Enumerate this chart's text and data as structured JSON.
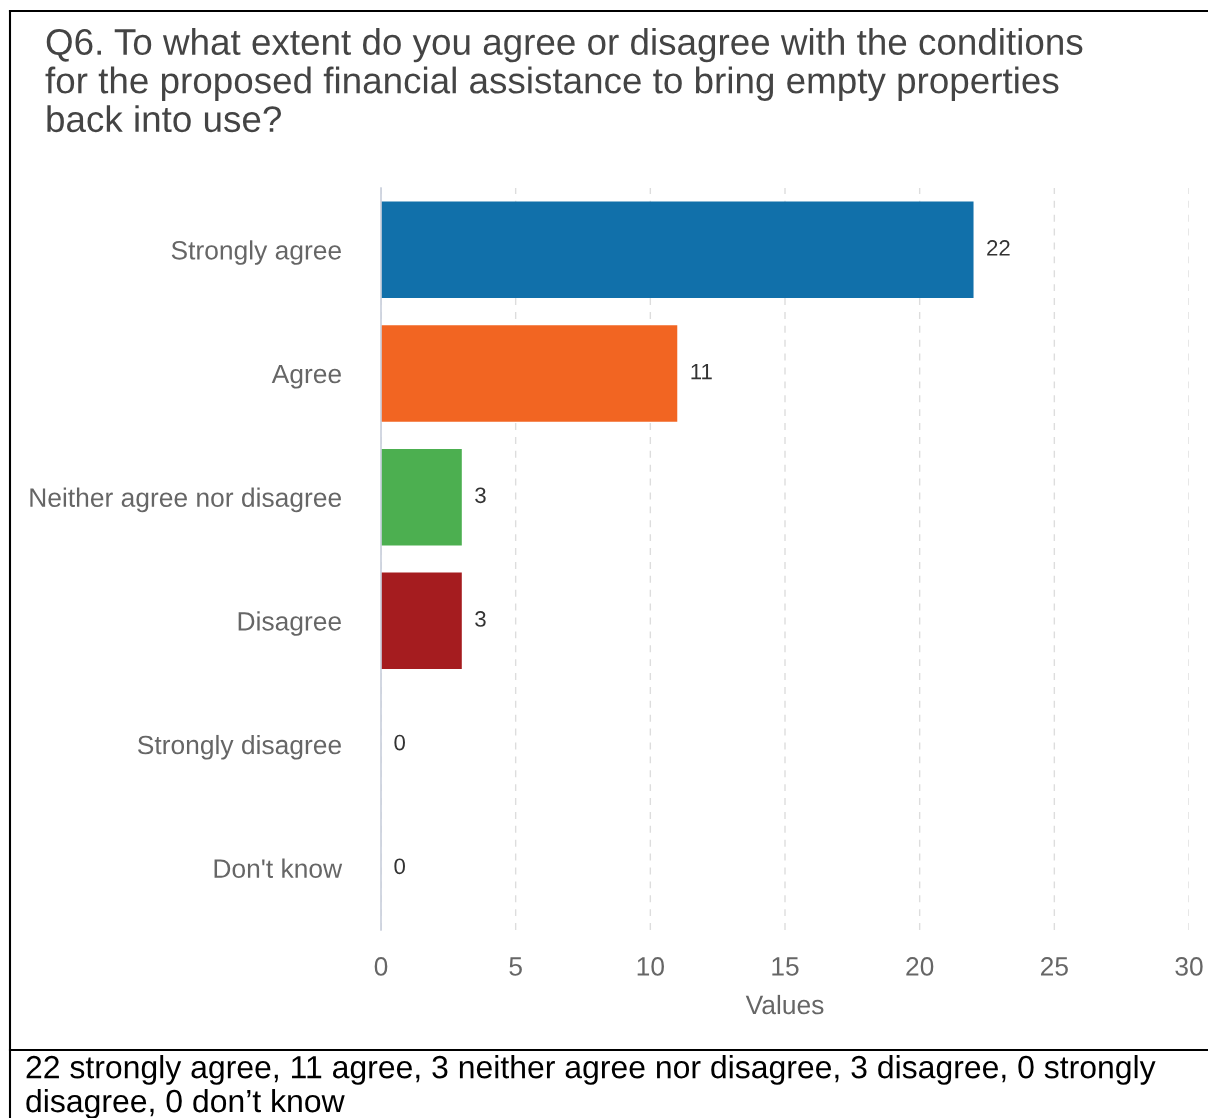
{
  "chart_data": {
    "type": "bar",
    "orientation": "horizontal",
    "title": "Q6. To what extent do you agree or disagree with the conditions for the proposed financial assistance to bring empty properties back into use?",
    "xlabel": "Values",
    "categories": [
      "Strongly agree",
      "Agree",
      "Neither agree nor disagree",
      "Disagree",
      "Strongly disagree",
      "Don't know"
    ],
    "values": [
      22,
      11,
      3,
      3,
      0,
      0
    ],
    "colors": [
      "#1170aa",
      "#f26522",
      "#4caf50",
      "#a51c1f",
      "#a51c1f",
      "#a51c1f"
    ],
    "xlim": [
      0,
      30
    ],
    "xticks": [
      0,
      5,
      10,
      15,
      20,
      25,
      30
    ],
    "grid": "x",
    "data_labels": true,
    "annotations": [
      "22 strongly agree, 11 agree, 3 neither agree nor disagree, 3 disagree, 0 strongly disagree, 0 don’t know"
    ]
  }
}
